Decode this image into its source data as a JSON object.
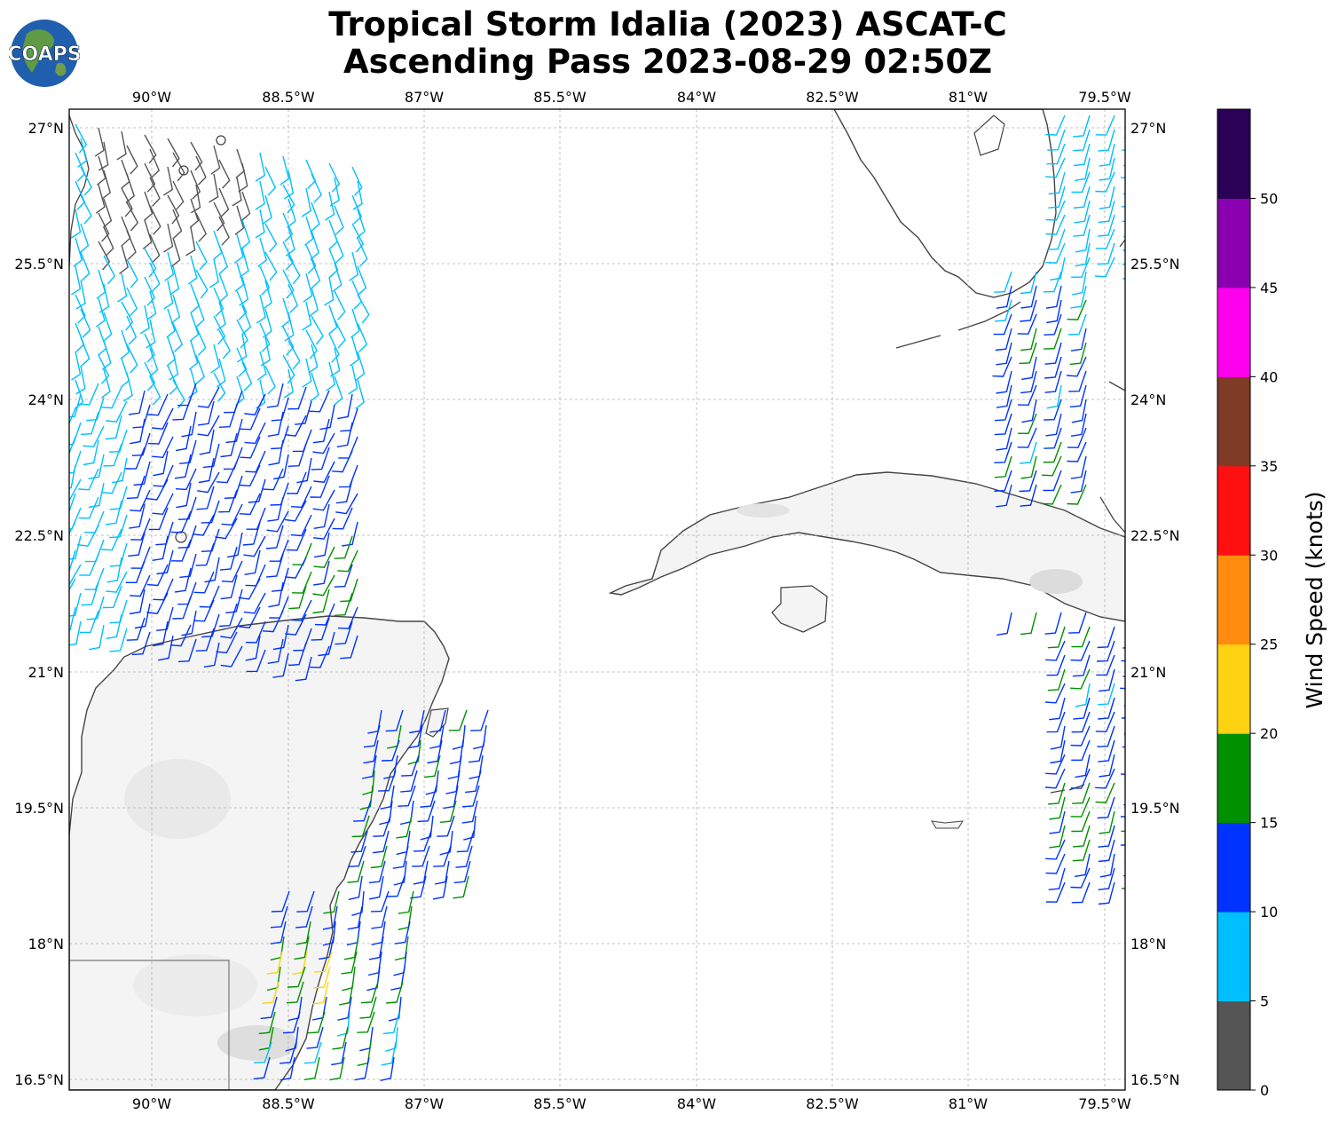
{
  "title_line1": "Tropical Storm Idalia (2023) ASCAT-C",
  "title_line2": "Ascending Pass 2023-08-29 02:50Z",
  "logo_text": "COAPS",
  "map": {
    "lon_labels": [
      "90°W",
      "88.5°W",
      "87°W",
      "85.5°W",
      "84°W",
      "82.5°W",
      "81°W",
      "79.5°W"
    ],
    "lat_labels": [
      "27°N",
      "25.5°N",
      "24°N",
      "22.5°N",
      "21°N",
      "19.5°N",
      "18°N",
      "16.5°N"
    ]
  },
  "colorbar": {
    "label": "Wind Speed (knots)",
    "ticks": [
      "0",
      "5",
      "10",
      "15",
      "20",
      "25",
      "30",
      "35",
      "40",
      "45",
      "50"
    ],
    "colors": [
      "#555555",
      "#00bfff",
      "#0033ff",
      "#009000",
      "#ffd312",
      "#ff8c0f",
      "#ff1010",
      "#7f3b26",
      "#ff00ee",
      "#8a00b0",
      "#2b0057"
    ]
  }
}
